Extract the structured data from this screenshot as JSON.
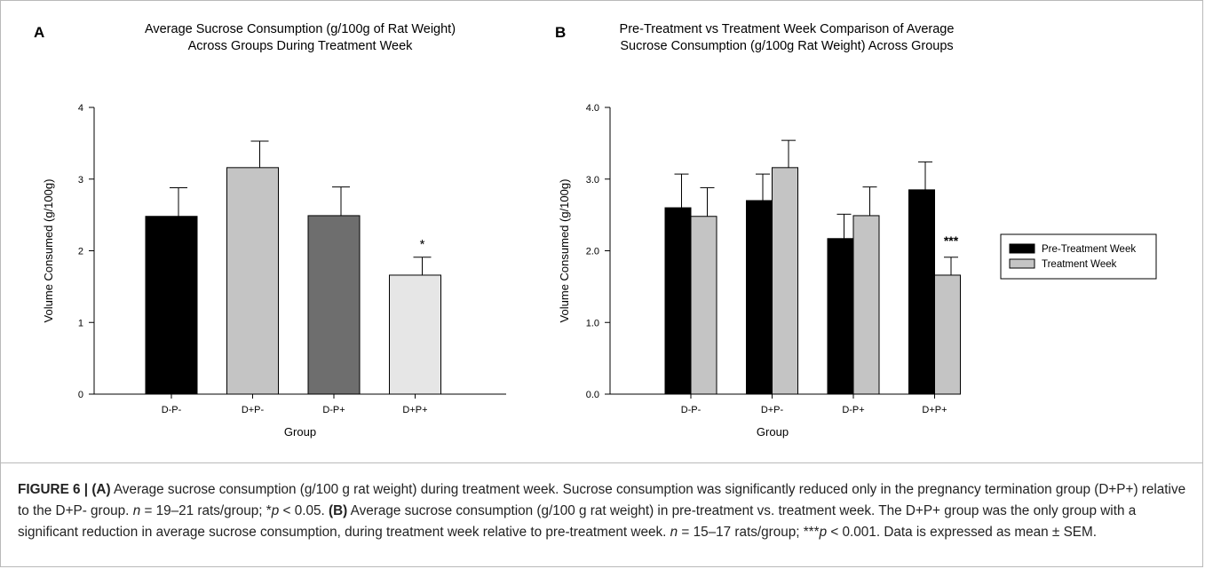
{
  "figure": {
    "panels": [
      {
        "id": "A",
        "label": "A",
        "title_line1": "Average Sucrose Consumption (g/100g of Rat Weight)",
        "title_line2": "Across Groups During Treatment Week",
        "colors": [
          "#000000",
          "#c4c4c4",
          "#6e6e6e",
          "#e6e6e6"
        ]
      },
      {
        "id": "B",
        "label": "B",
        "title_line1": "Pre-Treatment vs Treatment Week Comparison of Average",
        "title_line2": "Sucrose Consumption (g/100g Rat Weight) Across Groups",
        "colors": [
          "#000000",
          "#c4c4c4"
        ]
      }
    ]
  },
  "chart_data": [
    {
      "type": "bar",
      "panel": "A",
      "categories": [
        "D-P-",
        "D+P-",
        "D-P+",
        "D+P+"
      ],
      "values": [
        2.48,
        3.16,
        2.49,
        1.66
      ],
      "errors": [
        0.4,
        0.37,
        0.4,
        0.25
      ],
      "annotations": [
        "",
        "",
        "",
        "*"
      ],
      "xlabel": "Group",
      "ylabel": "Volume Consumed (g/100g)",
      "ylim": [
        0,
        4
      ],
      "yticks": [
        0,
        1,
        2,
        3,
        4
      ],
      "ytick_labels": [
        "0",
        "1",
        "2",
        "3",
        "4"
      ],
      "grid": false
    },
    {
      "type": "bar",
      "panel": "B",
      "categories": [
        "D-P-",
        "D+P-",
        "D-P+",
        "D+P+"
      ],
      "series": [
        {
          "name": "Pre-Treatment Week",
          "values": [
            2.6,
            2.7,
            2.17,
            2.85
          ],
          "errors": [
            0.47,
            0.37,
            0.34,
            0.39
          ]
        },
        {
          "name": "Treatment Week",
          "values": [
            2.48,
            3.16,
            2.49,
            1.66
          ],
          "errors": [
            0.4,
            0.38,
            0.4,
            0.25
          ]
        }
      ],
      "annotations": [
        {
          "category": "D+P+",
          "series": "Treatment Week",
          "text": "***"
        }
      ],
      "xlabel": "Group",
      "ylabel": "Volume Consumed (g/100g)",
      "ylim": [
        0,
        4
      ],
      "yticks": [
        0,
        1,
        2,
        3,
        4
      ],
      "ytick_labels": [
        "0.0",
        "1.0",
        "2.0",
        "3.0",
        "4.0"
      ],
      "legend_position": "right",
      "grid": false
    }
  ],
  "caption": {
    "figure_label": "FIGURE 6 | ",
    "a_tag": "(A)",
    "a_text_1": " Average sucrose consumption (g/100 g rat weight) during treatment week. Sucrose consumption was significantly reduced only in the pregnancy termination group (D+P+) relative to the D+P- group. ",
    "a_n": "n",
    "a_text_2": " = 19–21 rats/group; *",
    "a_p": "p",
    "a_text_3": " < 0.05. ",
    "b_tag": "(B)",
    "b_text_1": " Average sucrose consumption (g/100 g rat weight) in pre-treatment vs. treatment week. The D+P+ group was the only group with a significant reduction in average sucrose consumption, during treatment week relative to pre-treatment week. ",
    "b_n": "n",
    "b_text_2": " = 15–17 rats/group; ***",
    "b_p": "p",
    "b_text_3": " < 0.001. Data is expressed as mean ± SEM."
  }
}
